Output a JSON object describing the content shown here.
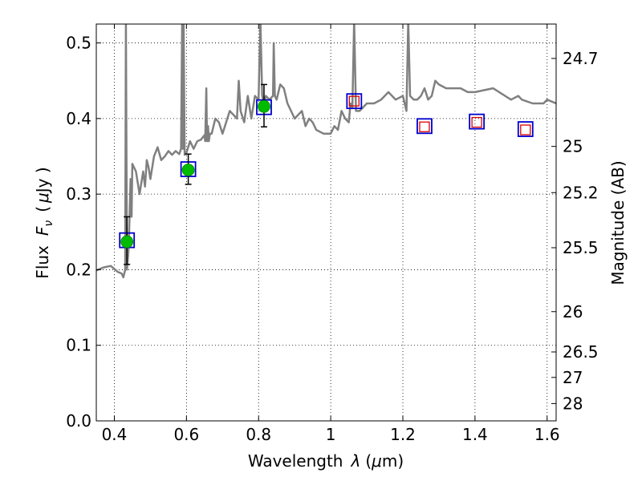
{
  "chart_data": {
    "type": "scatter",
    "xlabel_prefix": "Wavelength",
    "xlabel_symbol": "λ",
    "xlabel_unit_open": "(",
    "xlabel_unit_mu": "μ",
    "xlabel_unit_rest": "m)",
    "ylabel_prefix": "Flux",
    "ylabel_symbol": "F",
    "ylabel_sub": "ν",
    "ylabel_unit_open": "(",
    "ylabel_unit_mu": "μ",
    "ylabel_unit_rest": "Jy )",
    "y2label": "Magnitude (AB)",
    "xlim": [
      0.35,
      1.625
    ],
    "ylim": [
      0.0,
      0.525
    ],
    "grid": true,
    "xticks": [
      0.4,
      0.6,
      0.8,
      1.0,
      1.2,
      1.4,
      1.6
    ],
    "xtick_labels": [
      "0.4",
      "0.6",
      "0.8",
      "1",
      "1.2",
      "1.4",
      "1.6"
    ],
    "yticks": [
      0.0,
      0.1,
      0.2,
      0.3,
      0.4,
      0.5
    ],
    "ytick_labels": [
      "0.0",
      "0.1",
      "0.2",
      "0.3",
      "0.4",
      "0.5"
    ],
    "y2ticks": [
      {
        "label": "24.7",
        "flux": 0.4795
      },
      {
        "label": "25",
        "flux": 0.3631
      },
      {
        "label": "25.2",
        "flux": 0.302
      },
      {
        "label": "25.5",
        "flux": 0.2291
      },
      {
        "label": "26",
        "flux": 0.1445
      },
      {
        "label": "26.5",
        "flux": 0.0912
      },
      {
        "label": "27",
        "flux": 0.0575
      },
      {
        "label": "28",
        "flux": 0.0229
      }
    ],
    "series": [
      {
        "name": "model_spectrum",
        "style": "line",
        "color": "#808080",
        "x": [
          0.35,
          0.37,
          0.39,
          0.4,
          0.41,
          0.42,
          0.425,
          0.43,
          0.432,
          0.435,
          0.437,
          0.44,
          0.442,
          0.445,
          0.448,
          0.45,
          0.46,
          0.47,
          0.48,
          0.485,
          0.49,
          0.495,
          0.5,
          0.51,
          0.52,
          0.53,
          0.54,
          0.55,
          0.56,
          0.57,
          0.58,
          0.585,
          0.588,
          0.59,
          0.592,
          0.595,
          0.6,
          0.61,
          0.62,
          0.63,
          0.64,
          0.65,
          0.652,
          0.655,
          0.657,
          0.66,
          0.662,
          0.665,
          0.67,
          0.68,
          0.69,
          0.7,
          0.72,
          0.74,
          0.745,
          0.75,
          0.76,
          0.77,
          0.78,
          0.79,
          0.8,
          0.805,
          0.81,
          0.815,
          0.82,
          0.83,
          0.84,
          0.842,
          0.845,
          0.85,
          0.86,
          0.87,
          0.88,
          0.9,
          0.92,
          0.93,
          0.94,
          0.95,
          0.96,
          0.98,
          1.0,
          1.01,
          1.02,
          1.03,
          1.04,
          1.05,
          1.055,
          1.06,
          1.065,
          1.07,
          1.08,
          1.09,
          1.1,
          1.12,
          1.14,
          1.16,
          1.18,
          1.2,
          1.21,
          1.215,
          1.22,
          1.23,
          1.24,
          1.25,
          1.26,
          1.27,
          1.28,
          1.29,
          1.3,
          1.32,
          1.34,
          1.36,
          1.38,
          1.4,
          1.45,
          1.5,
          1.52,
          1.53,
          1.56,
          1.59,
          1.6,
          1.625
        ],
        "y": [
          0.199,
          0.203,
          0.205,
          0.201,
          0.197,
          0.195,
          0.19,
          0.2,
          0.53,
          0.2,
          0.21,
          0.23,
          0.265,
          0.32,
          0.27,
          0.34,
          0.33,
          0.3,
          0.33,
          0.31,
          0.345,
          0.335,
          0.32,
          0.35,
          0.362,
          0.345,
          0.35,
          0.357,
          0.352,
          0.357,
          0.353,
          0.36,
          0.53,
          0.36,
          0.53,
          0.352,
          0.355,
          0.37,
          0.36,
          0.37,
          0.372,
          0.378,
          0.37,
          0.44,
          0.37,
          0.39,
          0.37,
          0.38,
          0.38,
          0.4,
          0.395,
          0.38,
          0.41,
          0.4,
          0.45,
          0.41,
          0.395,
          0.43,
          0.4,
          0.43,
          0.425,
          0.53,
          0.43,
          0.42,
          0.43,
          0.425,
          0.43,
          0.5,
          0.43,
          0.425,
          0.445,
          0.44,
          0.42,
          0.4,
          0.41,
          0.39,
          0.4,
          0.395,
          0.385,
          0.38,
          0.38,
          0.39,
          0.385,
          0.41,
          0.4,
          0.395,
          0.42,
          0.415,
          0.53,
          0.41,
          0.41,
          0.415,
          0.42,
          0.42,
          0.425,
          0.435,
          0.425,
          0.43,
          0.41,
          0.53,
          0.43,
          0.425,
          0.425,
          0.43,
          0.44,
          0.425,
          0.43,
          0.45,
          0.445,
          0.44,
          0.44,
          0.44,
          0.435,
          0.435,
          0.44,
          0.425,
          0.43,
          0.425,
          0.42,
          0.42,
          0.425,
          0.42
        ]
      },
      {
        "name": "model_box_photometry",
        "style": "open_square",
        "color": "#0000cc",
        "x": [
          0.435,
          0.605,
          0.815,
          1.065,
          1.26,
          1.405,
          1.54
        ],
        "y": [
          0.239,
          0.333,
          0.415,
          0.423,
          0.39,
          0.396,
          0.386
        ]
      },
      {
        "name": "observed_detections",
        "style": "filled_circle",
        "color": "#00bb00",
        "x": [
          0.435,
          0.605,
          0.815
        ],
        "y": [
          0.237,
          0.332,
          0.416
        ],
        "yerr_low": [
          0.03,
          0.019,
          0.027
        ],
        "yerr_high": [
          0.033,
          0.021,
          0.029
        ]
      },
      {
        "name": "observed_nondetections",
        "style": "small_open_square",
        "color": "#dd0000",
        "x": [
          1.065,
          1.26,
          1.405,
          1.54
        ],
        "y": [
          0.423,
          0.389,
          0.395,
          0.385
        ]
      }
    ]
  }
}
